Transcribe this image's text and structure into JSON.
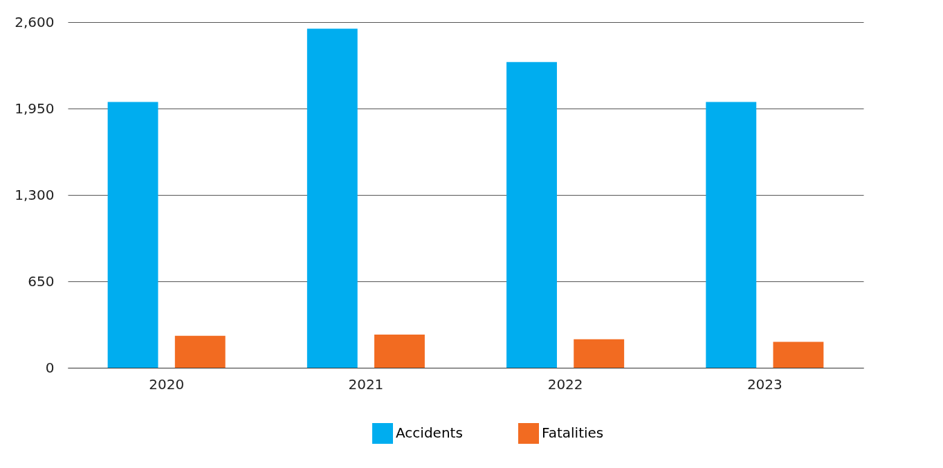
{
  "chart_data": {
    "type": "bar",
    "categories": [
      "2020",
      "2021",
      "2022",
      "2023"
    ],
    "series": [
      {
        "name": "Accidents",
        "color": "#00adef",
        "values": [
          2000,
          2550,
          2300,
          2000
        ]
      },
      {
        "name": "Fatalities",
        "color": "#f26b21",
        "values": [
          240,
          250,
          215,
          195
        ]
      }
    ],
    "ylim": [
      0,
      2600
    ],
    "yticks": [
      0,
      {
        "value": 650,
        "label": "650"
      },
      {
        "value": 1300,
        "label": "1,300"
      },
      {
        "value": 1950,
        "label": "1,950"
      },
      {
        "value": 2600,
        "label": "2,600"
      }
    ],
    "grid": "y",
    "legend": "bottom"
  }
}
